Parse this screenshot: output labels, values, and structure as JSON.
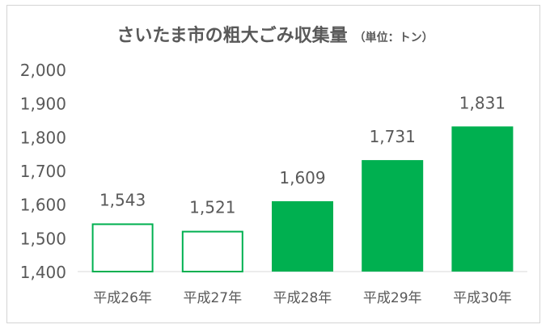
{
  "chart_data": {
    "type": "bar",
    "title": "さいたま市の粗大ごみ収集量",
    "subtitle": "（単位：トン）",
    "categories": [
      "平成26年",
      "平成27年",
      "平成28年",
      "平成29年",
      "平成30年"
    ],
    "values": [
      1543,
      1521,
      1609,
      1731,
      1831
    ],
    "value_labels": [
      "1,543",
      "1,521",
      "1,609",
      "1,731",
      "1,831"
    ],
    "ylim": [
      1400,
      2000
    ],
    "yticks": [
      1400,
      1500,
      1600,
      1700,
      1800,
      1900,
      2000
    ],
    "ytick_labels": [
      "1,400",
      "1,500",
      "1,600",
      "1,700",
      "1,800",
      "1,900",
      "2,000"
    ],
    "grid": false,
    "bar_styles": [
      "outline",
      "outline",
      "filled",
      "filled",
      "filled"
    ],
    "colors": {
      "bar": "#00b050",
      "text": "#595959",
      "axis": "#d9d9d9"
    }
  }
}
